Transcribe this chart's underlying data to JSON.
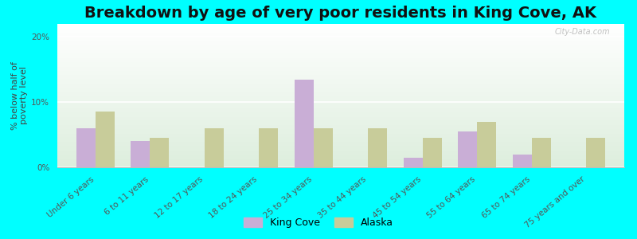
{
  "title": "Breakdown by age of very poor residents in King Cove, AK",
  "ylabel": "% below half of\npoverty level",
  "categories": [
    "Under 6 years",
    "6 to 11 years",
    "12 to 17 years",
    "18 to 24 years",
    "25 to 34 years",
    "35 to 44 years",
    "45 to 54 years",
    "55 to 64 years",
    "65 to 74 years",
    "75 years and over"
  ],
  "king_cove": [
    6.0,
    4.0,
    0.0,
    0.0,
    13.5,
    0.0,
    1.5,
    5.5,
    2.0,
    0.0
  ],
  "alaska": [
    8.5,
    4.5,
    6.0,
    6.0,
    6.0,
    6.0,
    4.5,
    7.0,
    4.5,
    4.5
  ],
  "king_cove_color": "#c9aed6",
  "alaska_color": "#c8cc9a",
  "background_outer": "#00ffff",
  "background_plot_top": "#ffffff",
  "background_plot_bottom": "#ddeedd",
  "ylim": [
    0,
    22
  ],
  "yticks": [
    0,
    10,
    20
  ],
  "ytick_labels": [
    "0%",
    "10%",
    "20%"
  ],
  "bar_width": 0.35,
  "title_fontsize": 14,
  "axis_label_fontsize": 8,
  "tick_fontsize": 7.5,
  "legend_label_king_cove": "King Cove",
  "legend_label_alaska": "Alaska",
  "watermark": "City-Data.com"
}
